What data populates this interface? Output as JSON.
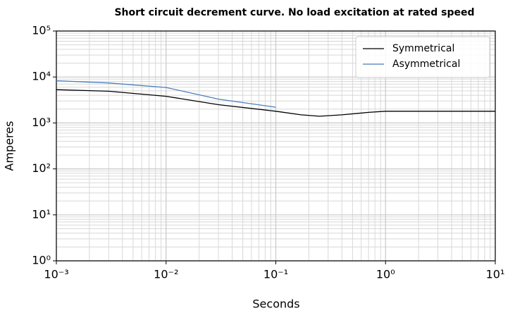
{
  "chart_data": {
    "type": "line",
    "title": "Short circuit decrement curve. No load excitation at rated speed",
    "xlabel": "Seconds",
    "ylabel": "Amperes",
    "xscale": "log",
    "yscale": "log",
    "grid": "both",
    "legend": "upper right",
    "xlim": [
      0.001,
      10
    ],
    "ylim": [
      1,
      100000
    ],
    "xticks": [
      {
        "value": 0.001,
        "label": "10⁻³"
      },
      {
        "value": 0.01,
        "label": "10⁻²"
      },
      {
        "value": 0.1,
        "label": "10⁻¹"
      },
      {
        "value": 1,
        "label": "10⁰"
      },
      {
        "value": 10,
        "label": "10¹"
      }
    ],
    "yticks": [
      {
        "value": 1,
        "label": "10⁰"
      },
      {
        "value": 10,
        "label": "10¹"
      },
      {
        "value": 100,
        "label": "10²"
      },
      {
        "value": 1000,
        "label": "10³"
      },
      {
        "value": 10000,
        "label": "10⁴"
      },
      {
        "value": 100000,
        "label": "10⁵"
      }
    ],
    "series": [
      {
        "name": "Symmetrical",
        "color": "#000000",
        "x": [
          0.001,
          0.003,
          0.01,
          0.03,
          0.1,
          0.17,
          0.25,
          0.4,
          0.7,
          1,
          2,
          10
        ],
        "values": [
          5300,
          4900,
          3800,
          2500,
          1800,
          1500,
          1400,
          1500,
          1700,
          1800,
          1800,
          1800
        ]
      },
      {
        "name": "Asymmetrical",
        "color": "#4a7ebb",
        "x": [
          0.001,
          0.003,
          0.01,
          0.03,
          0.1
        ],
        "values": [
          8300,
          7400,
          5900,
          3300,
          2200
        ]
      }
    ]
  }
}
